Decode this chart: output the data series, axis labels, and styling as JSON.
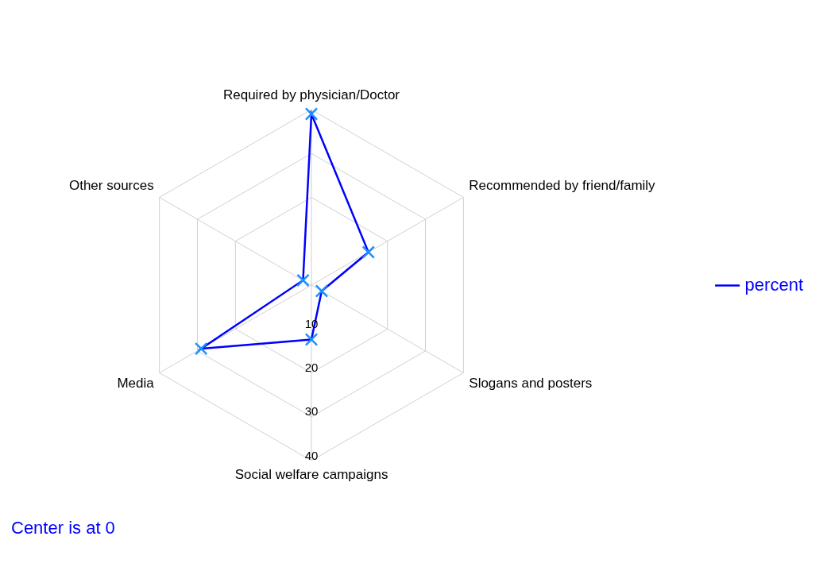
{
  "chart_data": {
    "type": "radar",
    "categories": [
      "Required by physician/Doctor",
      "Recommended by friend/family",
      "Slogans and posters",
      "Social welfare campaigns",
      "Media",
      "Other sources"
    ],
    "series": [
      {
        "name": "percent",
        "color": "#0000ff",
        "values": [
          39,
          15,
          2.7,
          12.4,
          29,
          2.2
        ]
      }
    ],
    "ylim": [
      0,
      40
    ],
    "yticks": [
      10,
      20,
      30,
      40
    ],
    "grid": true,
    "legend": "right",
    "marker": "cross",
    "line_style": "solid",
    "annotations": [
      "Center is at 0"
    ]
  }
}
